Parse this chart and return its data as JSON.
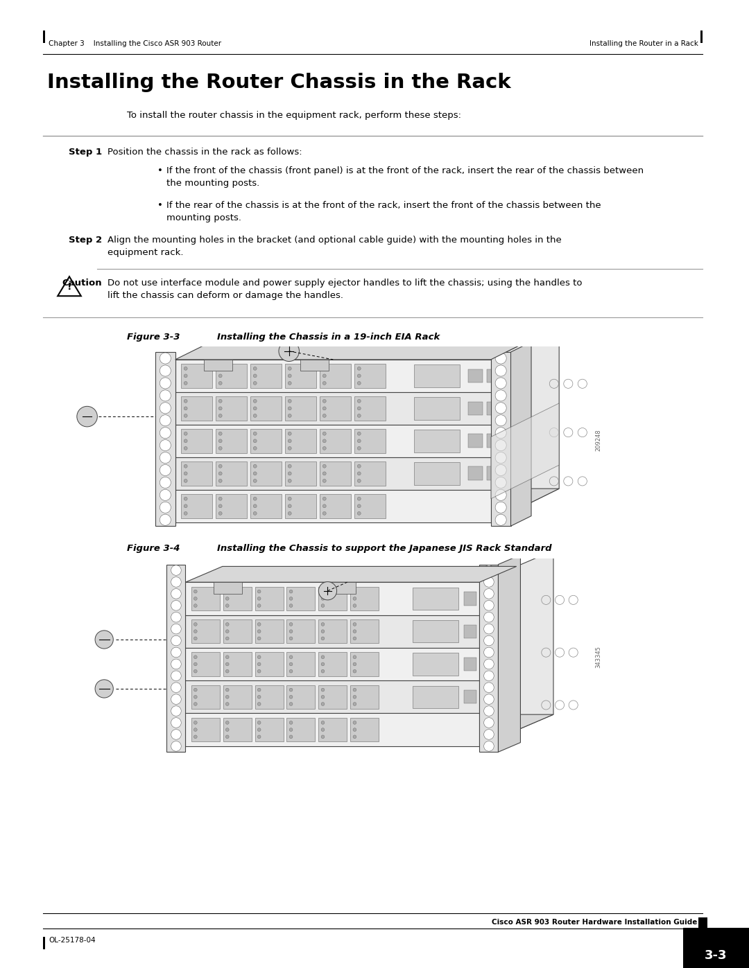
{
  "page_bg": "#ffffff",
  "header_left": "Chapter 3    Installing the Cisco ASR 903 Router",
  "header_right": "Installing the Router in a Rack",
  "footer_left": "OL-25178-04",
  "footer_right_top": "Cisco ASR 903 Router Hardware Installation Guide",
  "footer_right_bottom": "3-3",
  "main_title": "Installing the Router Chassis in the Rack",
  "intro_text": "To install the router chassis in the equipment rack, perform these steps:",
  "step1_label": "Step 1",
  "step1_text": "Position the chassis in the rack as follows:",
  "step2_label": "Step 2",
  "step2_text": "Align the mounting holes in the bracket (and optional cable guide) with the mounting holes in the\nequipment rack.",
  "caution_label": "Caution",
  "caution_text": "Do not use interface module and power supply ejector handles to lift the chassis; using the handles to\nlift the chassis can deform or damage the handles.",
  "fig3_label": "Figure 3-3",
  "fig3_title": "Installing the Chassis in a 19-inch EIA Rack",
  "fig4_label": "Figure 3-4",
  "fig4_title": "Installing the Chassis to support the Japanese JIS Rack Standard",
  "fig3_id": "209248",
  "fig4_id": "343345",
  "line_color": "#555555",
  "bg_color": "#ffffff"
}
